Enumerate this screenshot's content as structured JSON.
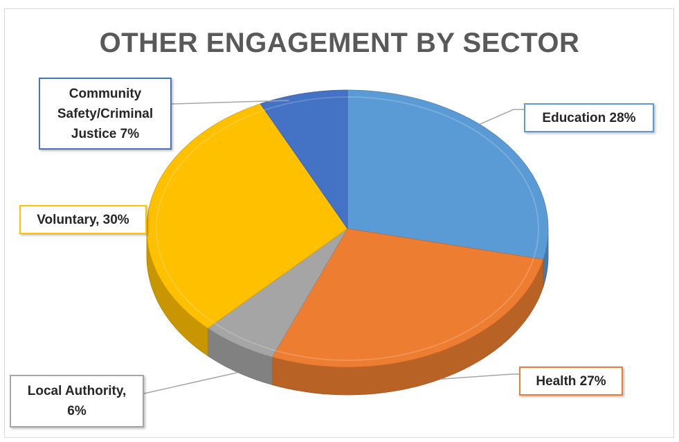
{
  "chart_data": {
    "type": "pie",
    "title": "OTHER ENGAGEMENT BY SECTOR",
    "slices": [
      {
        "name": "Education",
        "value": 28,
        "label": "Education  28%",
        "color": "#5b9bd5"
      },
      {
        "name": "Health",
        "value": 27,
        "label": "Health  27%",
        "color": "#ed7d31"
      },
      {
        "name": "Local Authority",
        "value": 6,
        "label": "Local Authority, 6%",
        "label_lines": [
          "Local Authority,",
          "6%"
        ],
        "color": "#a5a5a5"
      },
      {
        "name": "Voluntary",
        "value": 30,
        "label": "Voluntary, 30%",
        "color": "#ffc000"
      },
      {
        "name": "Community Safety/Criminal Justice",
        "value": 7,
        "label": "Community Safety/Criminal Justice 7%",
        "label_lines": [
          "Community",
          "Safety/Criminal",
          "Justice 7%"
        ],
        "color": "#4472c4"
      }
    ],
    "style": "3d-pie",
    "legend": "none"
  }
}
